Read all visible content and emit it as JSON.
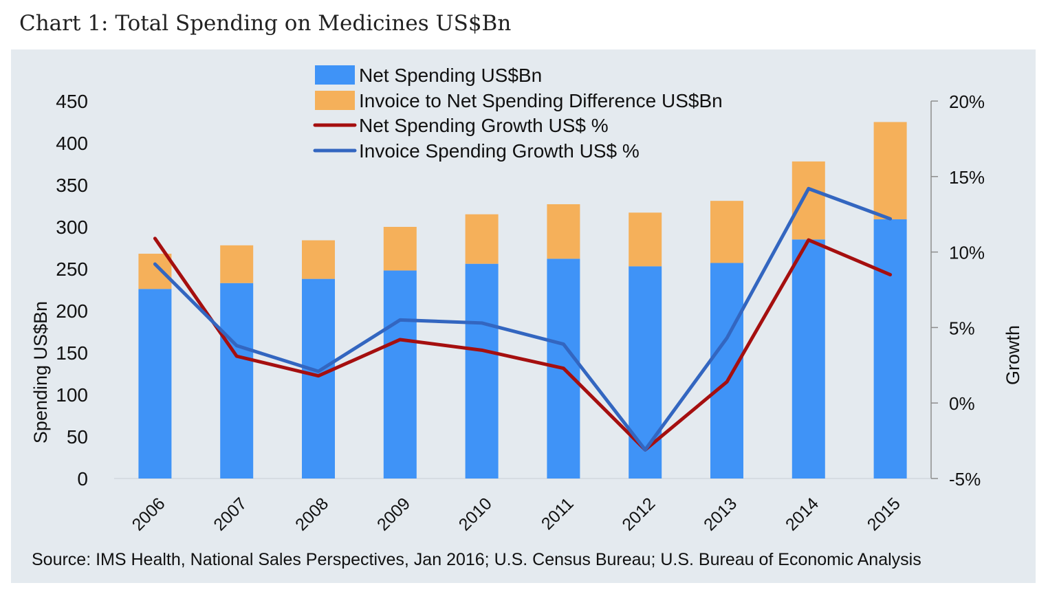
{
  "title": "Chart 1: Total Spending on Medicines US$Bn",
  "source": "Source: IMS Health, National Sales Perspectives, Jan 2016; U.S. Census Bureau; U.S. Bureau of Economic Analysis",
  "colors": {
    "net_spending": "#3f93f7",
    "invoice_difference": "#f5b05a",
    "net_growth": "#a50f0f",
    "invoice_growth": "#3366c0",
    "panel_bg": "#e4eaef"
  },
  "chart_data": {
    "type": "bar",
    "stacked": true,
    "title": "Chart 1: Total Spending on Medicines US$Bn",
    "categories": [
      "2006",
      "2007",
      "2008",
      "2009",
      "2010",
      "2011",
      "2012",
      "2013",
      "2014",
      "2015"
    ],
    "ylabel": "Spending US$Bn",
    "ylim": [
      0,
      450
    ],
    "yticks": [
      "0",
      "50",
      "100",
      "150",
      "200",
      "250",
      "300",
      "350",
      "400",
      "450"
    ],
    "y2label": "Growth",
    "y2lim": [
      -5,
      20
    ],
    "y2ticks": [
      "-5%",
      "0%",
      "5%",
      "10%",
      "15%",
      "20%"
    ],
    "grid": false,
    "legend_position": "top-center",
    "series": [
      {
        "name": "Net Spending US$Bn",
        "kind": "bar",
        "axis": "left",
        "values": [
          226,
          233,
          238,
          248,
          256,
          262,
          253,
          257,
          285,
          309
        ]
      },
      {
        "name": "Invoice to Net Spending Difference US$Bn",
        "kind": "bar",
        "axis": "left",
        "values": [
          42,
          45,
          46,
          52,
          59,
          65,
          64,
          74,
          93,
          116
        ]
      },
      {
        "name": "Net Spending Growth US$ %",
        "kind": "line",
        "axis": "right",
        "values": [
          10.9,
          3.1,
          1.8,
          4.2,
          3.5,
          2.3,
          -3.1,
          1.4,
          10.8,
          8.5
        ]
      },
      {
        "name": "Invoice Spending Growth US$ %",
        "kind": "line",
        "axis": "right",
        "values": [
          9.2,
          3.8,
          2.1,
          5.5,
          5.3,
          3.9,
          -3.1,
          4.3,
          14.2,
          12.2
        ]
      }
    ]
  }
}
